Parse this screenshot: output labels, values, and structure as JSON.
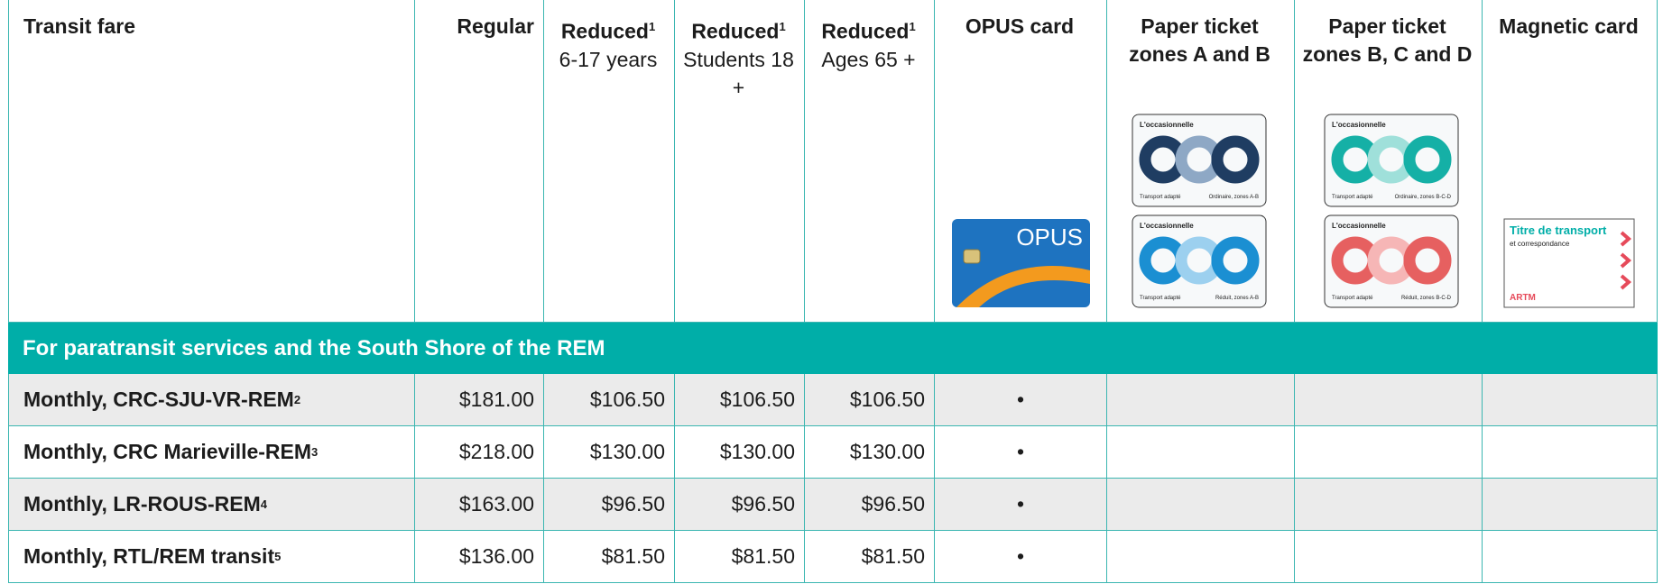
{
  "header": {
    "columns": [
      {
        "title": "Transit fare"
      },
      {
        "title": "Regular"
      },
      {
        "title": "Reduced",
        "superscript": "1",
        "subtitle": "6-17 years"
      },
      {
        "title": "Reduced",
        "superscript": "1",
        "subtitle": "Students 18 +"
      },
      {
        "title": "Reduced",
        "superscript": "1",
        "subtitle": "Ages 65 +"
      },
      {
        "title": "OPUS card"
      },
      {
        "title": "Paper ticket zones A and B"
      },
      {
        "title": "Paper ticket zones B, C and D"
      },
      {
        "title": "Magnetic card"
      }
    ]
  },
  "section": "For paratransit services and the South Shore of the REM",
  "rows": [
    {
      "label": "Monthly, CRC-SJU-VR-REM",
      "superscript": "2",
      "prices": [
        "$181.00",
        "$106.50",
        "$106.50",
        "$106.50"
      ],
      "opus": "•"
    },
    {
      "label": "Monthly, CRC Marieville-REM",
      "superscript": "3",
      "prices": [
        "$218.00",
        "$130.00",
        "$130.00",
        "$130.00"
      ],
      "opus": "•"
    },
    {
      "label": "Monthly, LR-ROUS-REM",
      "superscript": "4",
      "prices": [
        "$163.00",
        "$96.50",
        "$96.50",
        "$96.50"
      ],
      "opus": "•"
    },
    {
      "label": "Monthly, RTL/REM transit",
      "superscript": "5",
      "prices": [
        "$136.00",
        "$81.50",
        "$81.50",
        "$81.50"
      ],
      "opus": "•"
    }
  ],
  "cards": {
    "opus": "OPUS",
    "tickets": [
      {
        "title": "L'occasionnelle",
        "left": "Transport adapté",
        "right": "Ordinaire, zones A-B"
      },
      {
        "title": "L'occasionnelle",
        "left": "Transport adapté",
        "right": "Réduit, zones A-B"
      },
      {
        "title": "L'occasionnelle",
        "left": "Transport adapté",
        "right": "Ordinaire, zones B-C-D"
      },
      {
        "title": "L'occasionnelle",
        "left": "Transport adapté",
        "right": "Réduit, zones B-C-D"
      }
    ],
    "magnetic": {
      "title": "Titre de transport",
      "subtitle": "et correspondance",
      "brand": "ARTM"
    }
  }
}
